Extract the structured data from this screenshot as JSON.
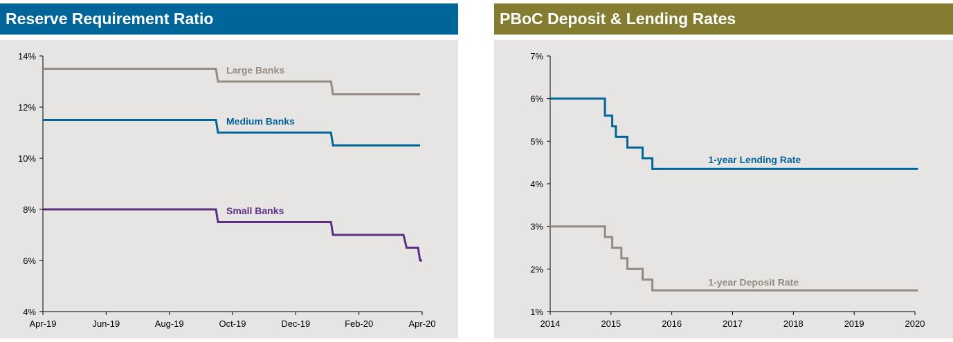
{
  "chart_data": [
    {
      "type": "line",
      "title": "Reserve Requirement Ratio",
      "title_bg": "#006699",
      "x_ticks": [
        "Apr-19",
        "Jun-19",
        "Aug-19",
        "Oct-19",
        "Dec-19",
        "Feb-20",
        "Apr-20"
      ],
      "y_ticks": [
        "4%",
        "6%",
        "8%",
        "10%",
        "12%",
        "14%"
      ],
      "xlim": [
        "2019-04-01",
        "2020-04-01"
      ],
      "ylim": [
        4,
        14
      ],
      "grid": false,
      "series": [
        {
          "name": "Large Banks",
          "color": "#948a82",
          "x": [
            "2019-04-01",
            "2019-09-15",
            "2019-09-17",
            "2020-01-04",
            "2020-01-06",
            "2020-03-30"
          ],
          "y": [
            13.5,
            13.5,
            13.0,
            13.0,
            12.5,
            12.5
          ],
          "label_at": [
            "2019-09-25",
            13.5
          ]
        },
        {
          "name": "Medium Banks",
          "color": "#006699",
          "x": [
            "2019-04-01",
            "2019-09-15",
            "2019-09-17",
            "2020-01-04",
            "2020-01-06",
            "2020-03-30"
          ],
          "y": [
            11.5,
            11.5,
            11.0,
            11.0,
            10.5,
            10.5
          ],
          "label_at": [
            "2019-09-25",
            11.5
          ]
        },
        {
          "name": "Small Banks",
          "color": "#5c2d85",
          "x": [
            "2019-04-01",
            "2019-09-15",
            "2019-09-17",
            "2020-01-04",
            "2020-01-06",
            "2020-03-14",
            "2020-03-17",
            "2020-03-28",
            "2020-03-30",
            "2020-04-01"
          ],
          "y": [
            8.0,
            8.0,
            7.5,
            7.5,
            7.0,
            7.0,
            6.5,
            6.5,
            6.0,
            6.0
          ],
          "label_at": [
            "2019-09-25",
            8.0
          ]
        }
      ]
    },
    {
      "type": "line",
      "title": "PBoC Deposit & Lending Rates",
      "title_bg": "#847d31",
      "x_ticks": [
        "2014",
        "2015",
        "2016",
        "2017",
        "2018",
        "2019",
        "2020"
      ],
      "y_ticks": [
        "1%",
        "2%",
        "3%",
        "4%",
        "5%",
        "6%",
        "7%"
      ],
      "xlim": [
        2014.0,
        2020.0
      ],
      "ylim": [
        1,
        7
      ],
      "grid": false,
      "series": [
        {
          "name": "1-year Lending Rate",
          "color": "#006699",
          "x": [
            2014.0,
            2014.9,
            2014.9,
            2015.02,
            2015.02,
            2015.08,
            2015.08,
            2015.27,
            2015.27,
            2015.52,
            2015.52,
            2015.68,
            2015.68,
            2020.05
          ],
          "y": [
            6.0,
            6.0,
            5.6,
            5.6,
            5.35,
            5.35,
            5.1,
            5.1,
            4.85,
            4.85,
            4.6,
            4.6,
            4.35,
            4.35
          ],
          "label_at": [
            2016.6,
            4.6
          ]
        },
        {
          "name": "1-year Deposit Rate",
          "color": "#948a82",
          "x": [
            2014.0,
            2014.9,
            2014.9,
            2015.02,
            2015.02,
            2015.17,
            2015.17,
            2015.27,
            2015.27,
            2015.52,
            2015.52,
            2015.68,
            2015.68,
            2020.05
          ],
          "y": [
            3.0,
            3.0,
            2.75,
            2.75,
            2.5,
            2.5,
            2.25,
            2.25,
            2.0,
            2.0,
            1.75,
            1.75,
            1.5,
            1.5
          ],
          "label_at": [
            2016.6,
            1.72
          ]
        }
      ]
    }
  ]
}
